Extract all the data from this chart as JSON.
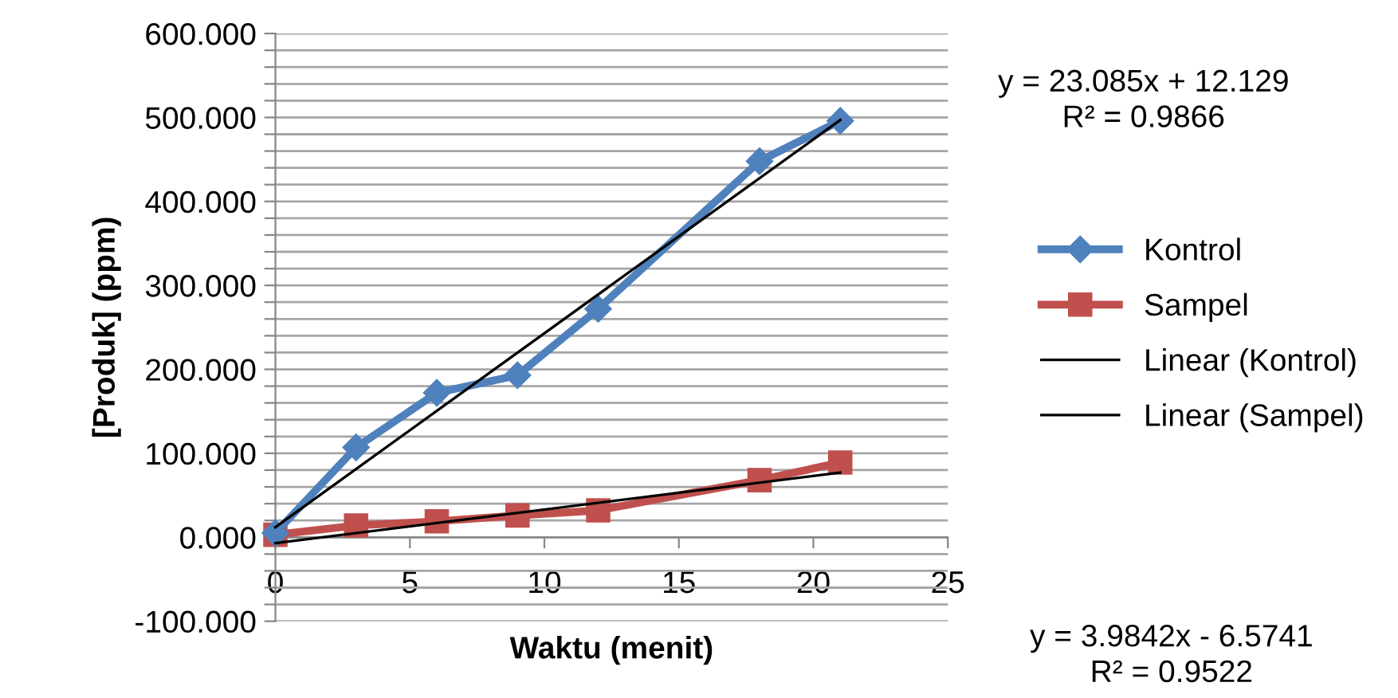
{
  "chart_data": {
    "type": "line",
    "xlabel": "Waktu (menit)",
    "ylabel": "[Produk] (ppm)",
    "xlim": [
      0,
      25
    ],
    "xticks": [
      0,
      5,
      10,
      15,
      20,
      25
    ],
    "ylim": [
      -100,
      600
    ],
    "yticks": [
      {
        "value": -100,
        "label": "-100.000"
      },
      {
        "value": -80,
        "label": null
      },
      {
        "value": -60,
        "label": null
      },
      {
        "value": -40,
        "label": null
      },
      {
        "value": -20,
        "label": null
      },
      {
        "value": 0,
        "label": "0.000"
      },
      {
        "value": 20,
        "label": null
      },
      {
        "value": 40,
        "label": null
      },
      {
        "value": 60,
        "label": null
      },
      {
        "value": 80,
        "label": null
      },
      {
        "value": 100,
        "label": "100.000"
      },
      {
        "value": 120,
        "label": null
      },
      {
        "value": 140,
        "label": null
      },
      {
        "value": 160,
        "label": null
      },
      {
        "value": 180,
        "label": null
      },
      {
        "value": 200,
        "label": "200.000"
      },
      {
        "value": 220,
        "label": null
      },
      {
        "value": 240,
        "label": null
      },
      {
        "value": 260,
        "label": null
      },
      {
        "value": 280,
        "label": null
      },
      {
        "value": 300,
        "label": "300.000"
      },
      {
        "value": 320,
        "label": null
      },
      {
        "value": 340,
        "label": null
      },
      {
        "value": 360,
        "label": null
      },
      {
        "value": 380,
        "label": null
      },
      {
        "value": 400,
        "label": "400.000"
      },
      {
        "value": 420,
        "label": null
      },
      {
        "value": 440,
        "label": null
      },
      {
        "value": 460,
        "label": null
      },
      {
        "value": 480,
        "label": null
      },
      {
        "value": 500,
        "label": "500.000"
      },
      {
        "value": 520,
        "label": null
      },
      {
        "value": 540,
        "label": null
      },
      {
        "value": 560,
        "label": null
      },
      {
        "value": 580,
        "label": null
      },
      {
        "value": 600,
        "label": "600.000"
      }
    ],
    "grid": "y",
    "legend": "right",
    "series": [
      {
        "name": "Kontrol",
        "color": "#4f81bd",
        "marker": "diamond",
        "x": [
          0,
          3,
          6,
          9,
          12,
          18,
          21
        ],
        "values": [
          5,
          107,
          172,
          193,
          272,
          448,
          496
        ]
      },
      {
        "name": "Sampel",
        "color": "#c0504d",
        "marker": "square",
        "x": [
          0,
          3,
          6,
          9,
          12,
          18,
          21
        ],
        "values": [
          3,
          14,
          19,
          26,
          32,
          68,
          89
        ]
      },
      {
        "name": "Linear (Kontrol)",
        "color": "#000000",
        "marker": "none",
        "x": [
          0,
          21
        ],
        "values": [
          12,
          497
        ]
      },
      {
        "name": "Linear (Sampel)",
        "color": "#000000",
        "marker": "none",
        "x": [
          0,
          21
        ],
        "values": [
          -7,
          77
        ]
      }
    ],
    "annotations": [
      "y = 23.085x + 12.129\nR² = 0.9866",
      "y = 3.9842x - 6.5741\nR² = 0.9522"
    ]
  }
}
